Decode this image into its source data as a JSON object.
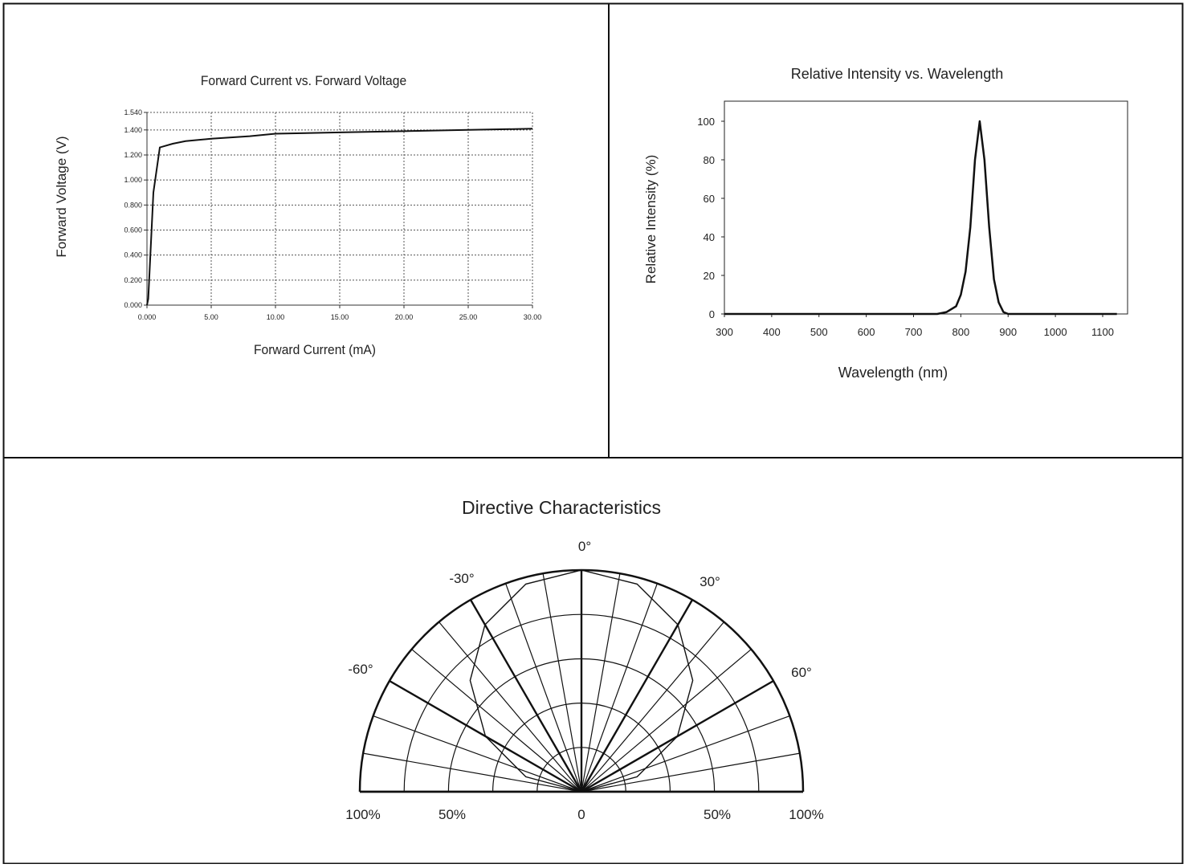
{
  "chart_data": [
    {
      "type": "line",
      "title": "Forward Current vs. Forward Voltage",
      "xlabel": "Forward Current (mA)",
      "ylabel": "Forward Voltage (V)",
      "xlim": [
        0,
        30
      ],
      "ylim": [
        0,
        1.54
      ],
      "xticks": [
        0,
        5,
        10,
        15,
        20,
        25,
        30
      ],
      "xtick_labels": [
        "0.000",
        "5.00",
        "10.00",
        "15.00",
        "20.00",
        "25.00",
        "30.00"
      ],
      "yticks": [
        0,
        0.2,
        0.4,
        0.6,
        0.8,
        1.0,
        1.2,
        1.4,
        1.54
      ],
      "ytick_labels": [
        "0.000",
        "0.200",
        "0.400",
        "0.600",
        "0.800",
        "1.000",
        "1.200",
        "1.400",
        "1.540"
      ],
      "grid": true,
      "series": [
        {
          "x": [
            0,
            0.1,
            0.5,
            1,
            2,
            3,
            5,
            8,
            10,
            15,
            20,
            25,
            30
          ],
          "y": [
            0,
            0.05,
            0.9,
            1.26,
            1.29,
            1.31,
            1.33,
            1.35,
            1.37,
            1.38,
            1.39,
            1.4,
            1.41
          ]
        }
      ]
    },
    {
      "type": "line",
      "title": "Relative Intensity vs. Wavelength",
      "xlabel": "Wavelength (nm)",
      "ylabel": "Relative Intensity (%)",
      "xlim": [
        300,
        1150
      ],
      "ylim": [
        0,
        110
      ],
      "xticks": [
        300,
        400,
        500,
        600,
        700,
        800,
        900,
        1000,
        1100
      ],
      "xtick_labels": [
        "300",
        "400",
        "500",
        "600",
        "700",
        "800",
        "900",
        "1000",
        "1100"
      ],
      "yticks": [
        0,
        20,
        40,
        60,
        80,
        100
      ],
      "ytick_labels": [
        "0",
        "20",
        "40",
        "60",
        "80",
        "100"
      ],
      "grid": false,
      "series": [
        {
          "x": [
            300,
            500,
            700,
            750,
            770,
            790,
            800,
            810,
            820,
            830,
            840,
            850,
            860,
            870,
            880,
            890,
            900,
            1000,
            1130
          ],
          "y": [
            0,
            0,
            0,
            0,
            1,
            4,
            10,
            22,
            45,
            80,
            100,
            80,
            45,
            18,
            6,
            1,
            0,
            0,
            0
          ]
        }
      ]
    },
    {
      "type": "polar",
      "title": "Directive Characteristics",
      "angle_labels": [
        "0°",
        "30°",
        "60°",
        "-30°",
        "-60°"
      ],
      "radial_labels": [
        "100%",
        "50%",
        "0",
        "50%",
        "100%"
      ],
      "angle_range": [
        -90,
        90
      ],
      "series": [
        {
          "angle": [
            -90,
            -75,
            -60,
            -45,
            -30,
            -15,
            0,
            15,
            30,
            45,
            60,
            75,
            90
          ],
          "r": [
            0,
            0.26,
            0.5,
            0.71,
            0.87,
            0.97,
            1,
            0.97,
            0.87,
            0.71,
            0.5,
            0.26,
            0
          ]
        }
      ]
    }
  ]
}
